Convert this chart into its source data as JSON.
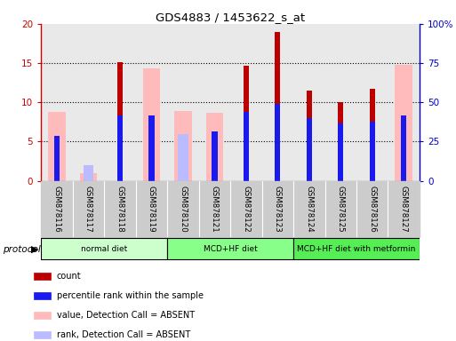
{
  "title": "GDS4883 / 1453622_s_at",
  "samples": [
    "GSM878116",
    "GSM878117",
    "GSM878118",
    "GSM878119",
    "GSM878120",
    "GSM878121",
    "GSM878122",
    "GSM878123",
    "GSM878124",
    "GSM878125",
    "GSM878126",
    "GSM878127"
  ],
  "count": [
    0,
    0,
    15.1,
    0,
    0,
    0,
    14.7,
    19.0,
    11.5,
    10.0,
    11.7,
    0
  ],
  "percentile_left": [
    5.7,
    0,
    8.3,
    8.3,
    0,
    6.3,
    8.8,
    9.8,
    8.0,
    7.3,
    7.5,
    8.3
  ],
  "absent_value": [
    8.8,
    1.0,
    0,
    14.3,
    8.9,
    8.7,
    0,
    0,
    0,
    0,
    0,
    14.8
  ],
  "absent_rank": [
    0,
    2.0,
    0,
    0,
    5.9,
    0,
    0,
    0,
    0,
    0,
    0,
    0
  ],
  "ylim_left": [
    0,
    20
  ],
  "ylim_right": [
    0,
    100
  ],
  "yticks_left": [
    0,
    5,
    10,
    15,
    20
  ],
  "yticks_right": [
    0,
    25,
    50,
    75,
    100
  ],
  "yticklabels_right": [
    "0",
    "25",
    "50",
    "75",
    "100%"
  ],
  "color_count": "#bb0000",
  "color_percentile": "#1a1aee",
  "color_absent_value": "#ffbbbb",
  "color_absent_rank": "#bbbbff",
  "protocol_groups": [
    {
      "label": "normal diet",
      "start": 0,
      "end": 3,
      "color": "#ccffcc"
    },
    {
      "label": "MCD+HF diet",
      "start": 4,
      "end": 7,
      "color": "#88ff88"
    },
    {
      "label": "MCD+HF diet with metformin",
      "start": 8,
      "end": 11,
      "color": "#55ee55"
    }
  ],
  "protocol_label": "protocol",
  "legend_items": [
    {
      "color": "#bb0000",
      "label": "count"
    },
    {
      "color": "#1a1aee",
      "label": "percentile rank within the sample"
    },
    {
      "color": "#ffbbbb",
      "label": "value, Detection Call = ABSENT"
    },
    {
      "color": "#bbbbff",
      "label": "rank, Detection Call = ABSENT"
    }
  ],
  "left_axis_color": "#cc0000",
  "right_axis_color": "#0000cc",
  "grid_color": "#000000"
}
